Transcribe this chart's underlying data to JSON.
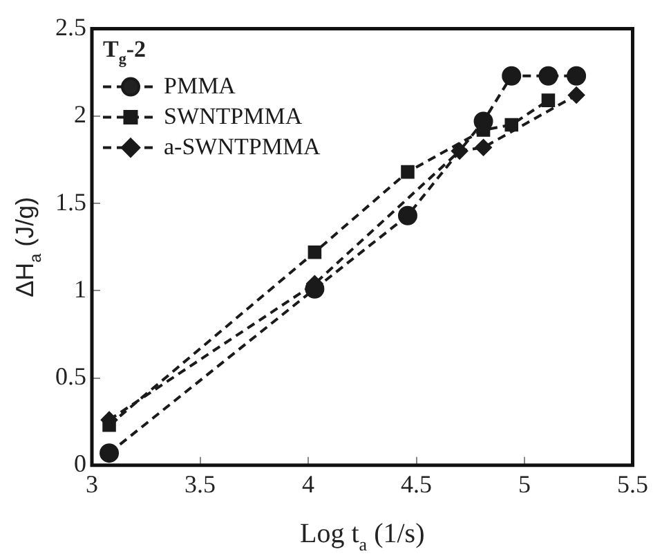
{
  "chart_data": {
    "type": "line",
    "xlabel": "Log t$_{a}$ (1/s)",
    "ylabel": "ΔH$_{a}$ (J/g)",
    "annotations": [
      "T$_{g}$-2"
    ],
    "xlim": [
      3,
      5.5
    ],
    "xticks": [
      3,
      3.5,
      4,
      4.5,
      5,
      5.5
    ],
    "ylim": [
      0,
      2.5
    ],
    "yticks": [
      0,
      0.5,
      1,
      1.5,
      2,
      2.5
    ],
    "grid": false,
    "legend": "top left",
    "line_style": "dashed",
    "series": [
      {
        "name": "PMMA",
        "color": "#1a1a1a",
        "marker": "circle",
        "x": [
          3.08,
          4.03,
          4.46,
          4.81,
          4.94,
          5.11,
          5.24
        ],
        "values": [
          0.07,
          1.01,
          1.43,
          1.97,
          2.23,
          2.23,
          2.23
        ]
      },
      {
        "name": "SWNTPMMA",
        "color": "#1a1a1a",
        "marker": "square",
        "x": [
          3.08,
          4.03,
          4.46,
          4.81,
          4.94,
          5.11
        ],
        "values": [
          0.23,
          1.22,
          1.68,
          1.92,
          1.95,
          2.09
        ]
      },
      {
        "name": "a-SWNTPMMA",
        "color": "#1a1a1a",
        "marker": "diamond",
        "x": [
          3.08,
          4.03,
          4.7,
          4.81,
          5.24
        ],
        "values": [
          0.26,
          1.04,
          1.8,
          1.82,
          2.12
        ]
      }
    ]
  }
}
